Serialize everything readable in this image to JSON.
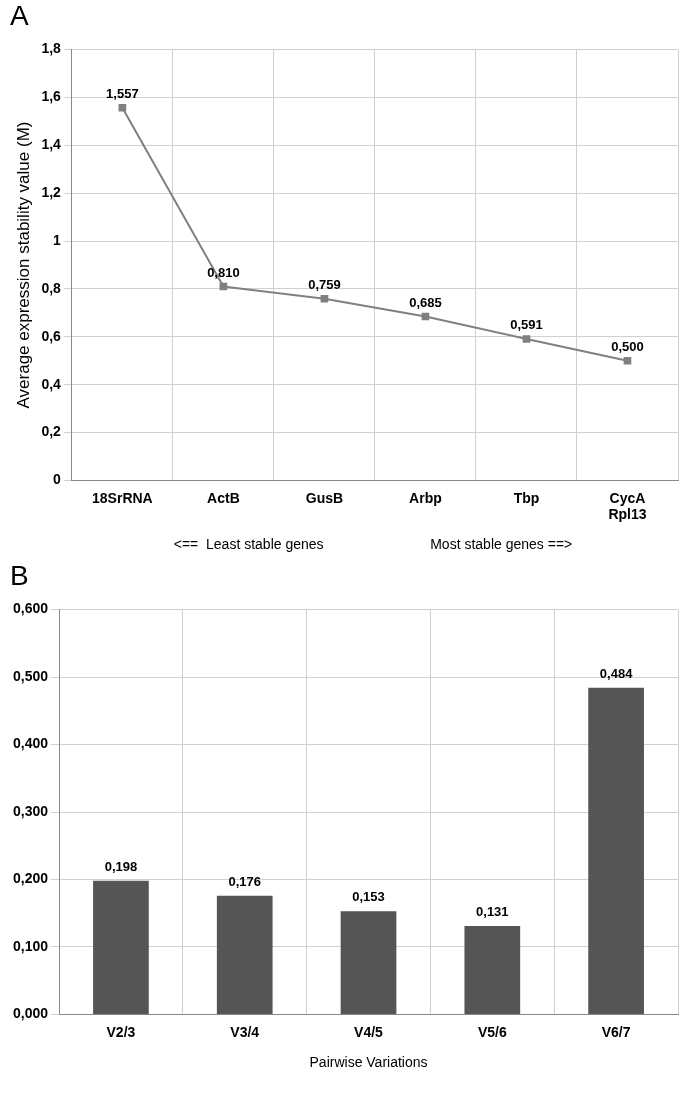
{
  "chart_data": [
    {
      "type": "line",
      "title": "A",
      "ylabel": "Average expression stability value (M)",
      "categories": [
        "18SrRNA",
        "ActB",
        "GusB",
        "Arbp",
        "Tbp",
        "CycA\nRpl13"
      ],
      "series": [
        {
          "color": "#808080",
          "values": [
            1.557,
            0.81,
            0.759,
            0.685,
            0.591,
            0.5
          ],
          "value_labels": [
            "1,557",
            "0,810",
            "0,759",
            "0,685",
            "0,591",
            "0,500"
          ]
        }
      ],
      "ylim": [
        0,
        1.8
      ],
      "yticks": [
        0,
        {
          "value": 0.2,
          "label": "0,2"
        },
        {
          "value": 0.4,
          "label": "0,4"
        },
        {
          "value": 0.6,
          "label": "0,6"
        },
        {
          "value": 0.8,
          "label": "0,8"
        },
        1,
        {
          "value": 1.2,
          "label": "1,2"
        },
        {
          "value": 1.4,
          "label": "1,4"
        },
        {
          "value": 1.6,
          "label": "1,6"
        },
        {
          "value": 1.8,
          "label": "1,8"
        }
      ],
      "grid": true,
      "marker": "square",
      "line_style": "solid",
      "legend": false,
      "annotations": [
        "<==  Least stable genes",
        "Most stable genes ==>"
      ]
    },
    {
      "type": "bar",
      "title": "B",
      "xlabel": "Pairwise Variations",
      "categories": [
        "V2/3",
        "V3/4",
        "V4/5",
        "V5/6",
        "V6/7"
      ],
      "series": [
        {
          "color": "#555555",
          "values": [
            0.198,
            0.176,
            0.153,
            0.131,
            0.484
          ],
          "value_labels": [
            "0,198",
            "0,176",
            "0,153",
            "0,131",
            "0,484"
          ]
        }
      ],
      "ylim": [
        0,
        0.6
      ],
      "yticks": [
        {
          "value": 0,
          "label": "0,000"
        },
        {
          "value": 0.1,
          "label": "0,100"
        },
        {
          "value": 0.2,
          "label": "0,200"
        },
        {
          "value": 0.3,
          "label": "0,300"
        },
        {
          "value": 0.4,
          "label": "0,400"
        },
        {
          "value": 0.5,
          "label": "0,500"
        },
        {
          "value": 0.6,
          "label": "0,600"
        }
      ],
      "grid": true,
      "legend": false
    }
  ]
}
